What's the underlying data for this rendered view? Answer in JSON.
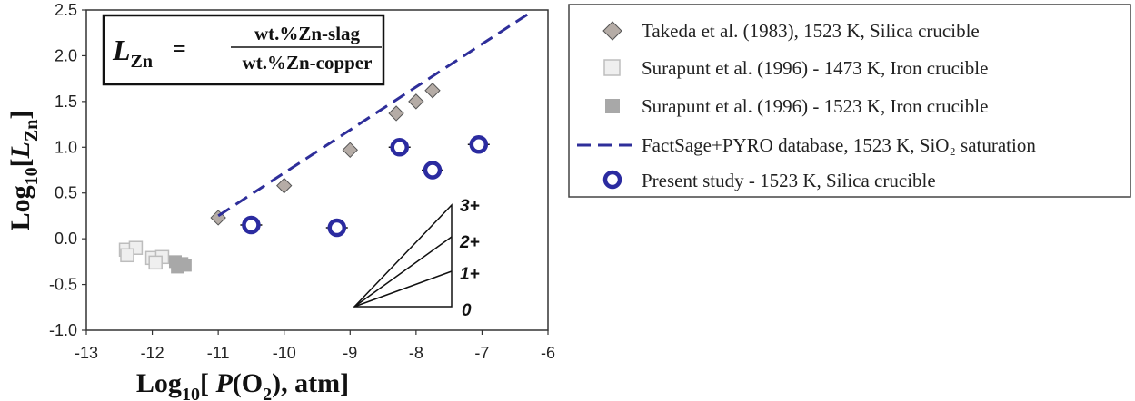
{
  "chart_data": {
    "type": "scatter",
    "xlim": [
      -13,
      -6
    ],
    "ylim": [
      -1.0,
      2.5
    ],
    "x_ticks": [
      "-13",
      "-12",
      "-11",
      "-10",
      "-9",
      "-8",
      "-7",
      "-6"
    ],
    "y_ticks": [
      "-1.0",
      "-0.5",
      "0.0",
      "0.5",
      "1.0",
      "1.5",
      "2.0",
      "2.5"
    ],
    "x_tick_values": [
      -13,
      -12,
      -11,
      -10,
      -9,
      -8,
      -7,
      -6
    ],
    "y_tick_values": [
      -1.0,
      -0.5,
      0.0,
      0.5,
      1.0,
      1.5,
      2.0,
      2.5
    ],
    "xlabel": {
      "prefix": "Log",
      "sub": "10",
      "mid": "[ ",
      "italic": "P",
      "rest": "(O",
      "sub2": "2",
      "end": "), atm]"
    },
    "ylabel": {
      "prefix": "Log",
      "sub": "10",
      "mid": "[",
      "italic": "L",
      "sub2": "Zn",
      "end": "]"
    },
    "grid": false,
    "legend_position": "right",
    "series": [
      {
        "name": "Takeda et al. (1983), 1523 K, Silica crucible",
        "marker": "diamond",
        "color": "#b5aca6",
        "x": [
          -11.0,
          -10.0,
          -9.0,
          -8.3,
          -8.0,
          -7.75
        ],
        "y": [
          0.23,
          0.58,
          0.97,
          1.37,
          1.5,
          1.62
        ]
      },
      {
        "name": "Surapunt et al. (1996) - 1473 K, Iron crucible",
        "marker": "square-open",
        "color": "#bdbdbd",
        "x": [
          -12.4,
          -12.25,
          -12.0,
          -11.85,
          -12.38,
          -11.95
        ],
        "y": [
          -0.12,
          -0.1,
          -0.21,
          -0.2,
          -0.18,
          -0.26
        ]
      },
      {
        "name": "Surapunt et al. (1996) - 1523 K, Iron crucible",
        "marker": "square",
        "color": "#a8a8a8",
        "x": [
          -11.65,
          -11.55,
          -11.62,
          -11.5
        ],
        "y": [
          -0.25,
          -0.27,
          -0.31,
          -0.29
        ]
      },
      {
        "name": "FactSage+PYRO database, 1523 K, SiO₂ saturation",
        "marker": "dashed-line",
        "color": "#2e2e9a",
        "x": [
          -11.0,
          -6.25
        ],
        "y": [
          0.25,
          2.48
        ]
      },
      {
        "name": "Present study - 1523 K, Silica crucible",
        "marker": "circle-open",
        "color": "#2b2ba0",
        "x": [
          -10.5,
          -9.2,
          -8.25,
          -7.75,
          -7.05
        ],
        "y": [
          0.15,
          0.12,
          1.0,
          0.75,
          1.03
        ]
      }
    ],
    "annotations": {
      "equation": {
        "lhs": "L",
        "lhs_sub": "Zn",
        "equals": "=",
        "numerator": "wt.%Zn-slag",
        "denominator": "wt.%Zn-copper"
      },
      "triangle_labels": [
        "3+",
        "2+",
        "1+",
        "0"
      ]
    }
  }
}
